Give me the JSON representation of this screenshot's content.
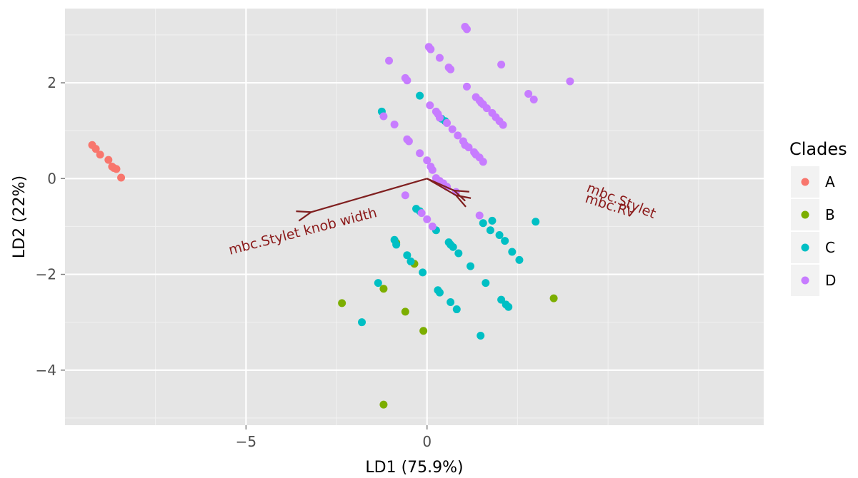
{
  "chart_data": {
    "type": "scatter",
    "xlabel": "LD1 (75.9%)",
    "ylabel": "LD2 (22%)",
    "xlim": [
      -10.0,
      9.3
    ],
    "ylim": [
      -5.15,
      3.55
    ],
    "x_ticks": [
      {
        "value": -5,
        "label": "−5"
      },
      {
        "value": 0,
        "label": "0"
      }
    ],
    "x_minor": [
      -7.5,
      -2.5,
      2.5,
      5,
      7.5
    ],
    "y_ticks": [
      {
        "value": 2,
        "label": "2"
      },
      {
        "value": 0,
        "label": "0"
      },
      {
        "value": -2,
        "label": "−2"
      },
      {
        "value": -4,
        "label": "−4"
      }
    ],
    "y_minor": [
      3,
      1,
      -1,
      -3,
      -5
    ],
    "grid": true,
    "legend": {
      "title": "Clades",
      "position": "right",
      "entries": [
        {
          "label": "A",
          "color": "#f8766d"
        },
        {
          "label": "B",
          "color": "#7cae00"
        },
        {
          "label": "C",
          "color": "#00bfc4"
        },
        {
          "label": "D",
          "color": "#c77cff"
        }
      ]
    },
    "arrow_color": "#7f1f1f",
    "arrows": [
      {
        "label": "mbc.Stylet knob width",
        "x": -3.2,
        "y": -0.7
      },
      {
        "label": "mbc.Stylet",
        "x": 0.8,
        "y": -0.35
      },
      {
        "label": "mbc.RV",
        "x": 0.75,
        "y": -0.25
      }
    ],
    "series": [
      {
        "name": "A",
        "points": [
          [
            -9.25,
            0.7
          ],
          [
            -9.15,
            0.62
          ],
          [
            -9.03,
            0.5
          ],
          [
            -8.8,
            0.39
          ],
          [
            -8.7,
            0.25
          ],
          [
            -8.65,
            0.22
          ],
          [
            -8.58,
            0.2
          ],
          [
            -8.45,
            0.02
          ]
        ]
      },
      {
        "name": "B",
        "points": [
          [
            -2.35,
            -2.6
          ],
          [
            -1.2,
            -2.3
          ],
          [
            -0.85,
            -1.34
          ],
          [
            -0.6,
            -2.78
          ],
          [
            -0.35,
            -1.78
          ],
          [
            -0.1,
            -3.18
          ],
          [
            -1.2,
            -4.72
          ],
          [
            3.5,
            -2.5
          ]
        ]
      },
      {
        "name": "C",
        "points": [
          [
            -1.25,
            1.4
          ],
          [
            -0.2,
            1.73
          ],
          [
            -1.8,
            -3.0
          ],
          [
            -1.35,
            -2.18
          ],
          [
            -0.9,
            -1.28
          ],
          [
            -0.85,
            -1.38
          ],
          [
            -0.55,
            -1.6
          ],
          [
            -0.45,
            -1.73
          ],
          [
            -0.3,
            -0.63
          ],
          [
            -0.2,
            -0.68
          ],
          [
            -0.12,
            -1.96
          ],
          [
            0.25,
            -1.08
          ],
          [
            0.3,
            -2.33
          ],
          [
            0.35,
            -2.38
          ],
          [
            0.4,
            1.25
          ],
          [
            0.5,
            1.2
          ],
          [
            0.6,
            -1.33
          ],
          [
            0.65,
            -1.38
          ],
          [
            0.65,
            -2.58
          ],
          [
            0.72,
            -1.43
          ],
          [
            0.82,
            -2.73
          ],
          [
            0.87,
            -1.56
          ],
          [
            1.2,
            -1.83
          ],
          [
            1.48,
            -3.28
          ],
          [
            1.55,
            -0.93
          ],
          [
            1.62,
            -2.18
          ],
          [
            1.75,
            -1.08
          ],
          [
            1.8,
            -0.88
          ],
          [
            2.0,
            -1.18
          ],
          [
            2.05,
            -2.53
          ],
          [
            2.15,
            -1.3
          ],
          [
            2.18,
            -2.63
          ],
          [
            2.25,
            -2.68
          ],
          [
            2.35,
            -1.53
          ],
          [
            2.55,
            -1.7
          ],
          [
            3.0,
            -0.9
          ]
        ]
      },
      {
        "name": "D",
        "points": [
          [
            -1.05,
            2.46
          ],
          [
            -0.6,
            2.1
          ],
          [
            -0.55,
            2.05
          ],
          [
            -0.9,
            1.13
          ],
          [
            -0.55,
            0.82
          ],
          [
            -0.5,
            0.78
          ],
          [
            -0.2,
            0.53
          ],
          [
            0.0,
            0.38
          ],
          [
            0.1,
            0.25
          ],
          [
            0.15,
            0.18
          ],
          [
            0.25,
            0.01
          ],
          [
            0.35,
            -0.05
          ],
          [
            0.45,
            -0.1
          ],
          [
            0.55,
            -0.17
          ],
          [
            0.8,
            -0.28
          ],
          [
            0.05,
            2.75
          ],
          [
            0.1,
            2.7
          ],
          [
            0.35,
            2.52
          ],
          [
            0.6,
            2.32
          ],
          [
            0.65,
            2.28
          ],
          [
            1.05,
            3.17
          ],
          [
            1.1,
            3.12
          ],
          [
            1.1,
            1.92
          ],
          [
            0.08,
            1.53
          ],
          [
            0.25,
            1.4
          ],
          [
            0.3,
            1.35
          ],
          [
            0.35,
            1.27
          ],
          [
            0.55,
            1.16
          ],
          [
            0.7,
            1.03
          ],
          [
            0.85,
            0.9
          ],
          [
            1.0,
            0.78
          ],
          [
            1.05,
            0.7
          ],
          [
            1.15,
            0.65
          ],
          [
            1.3,
            0.55
          ],
          [
            1.35,
            0.5
          ],
          [
            1.45,
            0.44
          ],
          [
            1.55,
            0.35
          ],
          [
            1.35,
            1.7
          ],
          [
            1.45,
            1.63
          ],
          [
            1.5,
            1.58
          ],
          [
            1.55,
            1.55
          ],
          [
            1.65,
            1.47
          ],
          [
            1.8,
            1.37
          ],
          [
            1.9,
            1.28
          ],
          [
            2.0,
            1.2
          ],
          [
            2.1,
            1.12
          ],
          [
            2.05,
            2.38
          ],
          [
            2.8,
            1.77
          ],
          [
            2.95,
            1.65
          ],
          [
            3.95,
            2.03
          ],
          [
            -1.2,
            1.3
          ],
          [
            -0.6,
            -0.35
          ],
          [
            -0.15,
            -0.72
          ],
          [
            0.0,
            -0.85
          ],
          [
            0.15,
            -1.0
          ],
          [
            1.45,
            -0.77
          ]
        ]
      }
    ]
  }
}
